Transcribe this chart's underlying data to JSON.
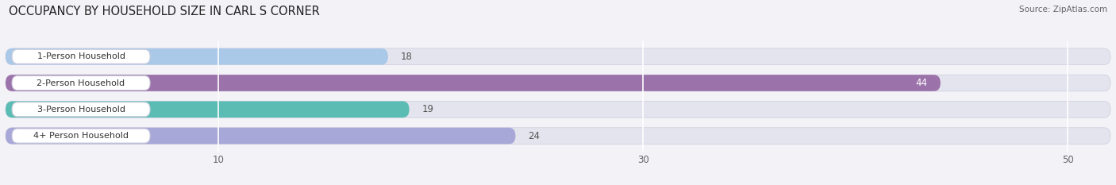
{
  "title": "OCCUPANCY BY HOUSEHOLD SIZE IN CARL S CORNER",
  "source": "Source: ZipAtlas.com",
  "categories": [
    "1-Person Household",
    "2-Person Household",
    "3-Person Household",
    "4+ Person Household"
  ],
  "values": [
    18,
    44,
    19,
    24
  ],
  "bar_colors": [
    "#aac8e8",
    "#9b72aa",
    "#5bbcb4",
    "#a8a8d8"
  ],
  "label_colors": [
    "#333333",
    "#ffffff",
    "#333333",
    "#333333"
  ],
  "value_colors": [
    "#555555",
    "#ffffff",
    "#555555",
    "#555555"
  ],
  "xlim_max": 52,
  "xticks": [
    10,
    30,
    50
  ],
  "background_color": "#f2f2f7",
  "bar_background_color": "#e4e4ee",
  "title_fontsize": 10.5,
  "source_fontsize": 7.5,
  "label_fontsize": 8,
  "value_fontsize": 8.5,
  "tick_fontsize": 8.5,
  "bar_height": 0.62,
  "label_badge_color": "#ffffff",
  "label_text_color": "#333333",
  "grid_color": "#ffffff"
}
